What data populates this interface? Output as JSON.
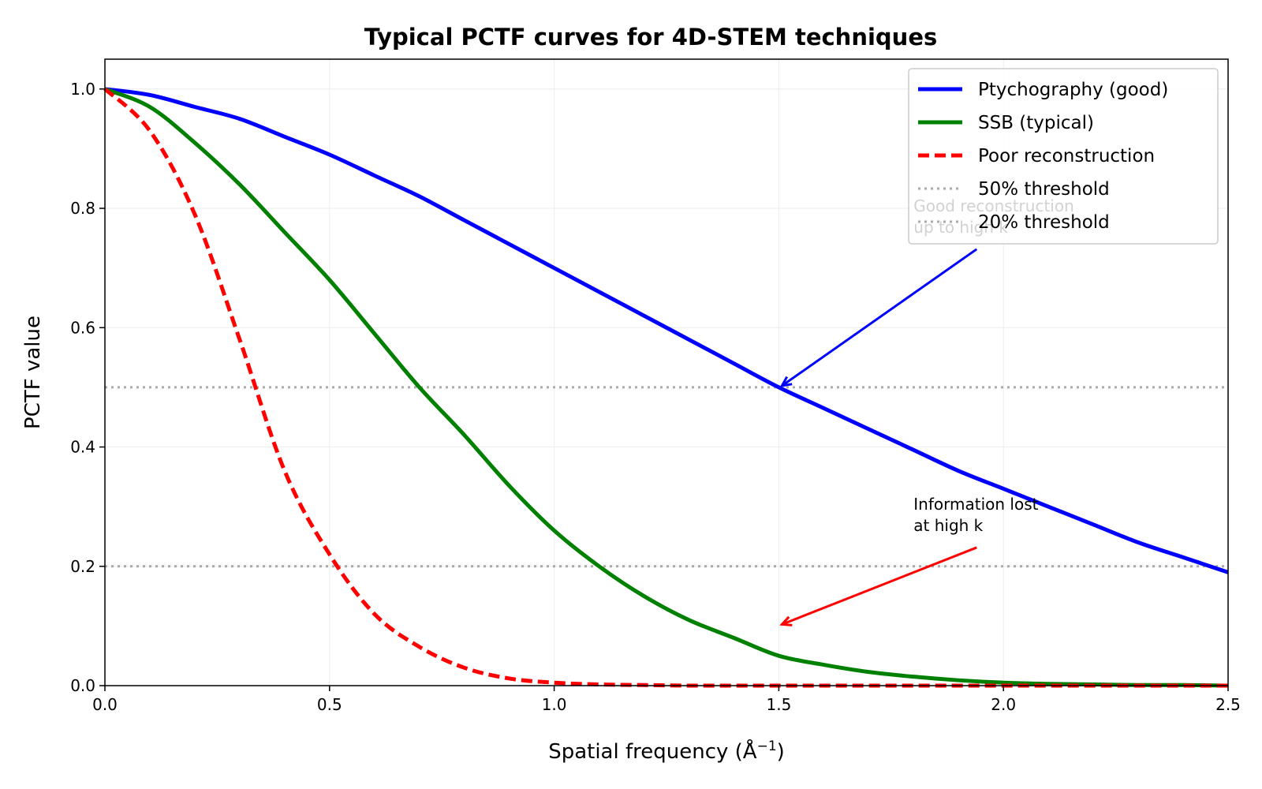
{
  "chart_data": {
    "type": "line",
    "title": "Typical PCTF curves for 4D-STEM techniques",
    "xlabel": "Spatial frequency (Å",
    "xlabel_sup": "−1",
    "xlabel_close": ")",
    "ylabel": "PCTF value",
    "xlim": [
      0,
      2.5
    ],
    "ylim": [
      0,
      1.05
    ],
    "grid": true,
    "legend_position": "top-right",
    "x_ticks": [
      0,
      0.5,
      1.0,
      1.5,
      2.0,
      2.5
    ],
    "x_tick_labels": [
      "0.0",
      "0.5",
      "1.0",
      "1.5",
      "2.0",
      "2.5"
    ],
    "y_ticks": [
      0,
      0.2,
      0.4,
      0.6,
      0.8,
      1.0
    ],
    "y_tick_labels": [
      "0.0",
      "0.2",
      "0.4",
      "0.6",
      "0.8",
      "1.0"
    ],
    "x": [
      0,
      0.1,
      0.2,
      0.3,
      0.4,
      0.5,
      0.6,
      0.7,
      0.8,
      0.9,
      1.0,
      1.1,
      1.2,
      1.3,
      1.4,
      1.5,
      1.6,
      1.7,
      1.8,
      1.9,
      2.0,
      2.1,
      2.2,
      2.3,
      2.4,
      2.5
    ],
    "series": [
      {
        "name": "Ptychography (good)",
        "color": "#0000ff",
        "style": "solid",
        "values": [
          1.0,
          0.99,
          0.97,
          0.95,
          0.92,
          0.89,
          0.855,
          0.82,
          0.78,
          0.74,
          0.7,
          0.66,
          0.62,
          0.58,
          0.54,
          0.5,
          0.465,
          0.43,
          0.395,
          0.36,
          0.33,
          0.3,
          0.27,
          0.24,
          0.215,
          0.19
        ]
      },
      {
        "name": "SSB (typical)",
        "color": "#008000",
        "style": "solid",
        "values": [
          1.0,
          0.97,
          0.91,
          0.84,
          0.76,
          0.68,
          0.59,
          0.5,
          0.42,
          0.335,
          0.26,
          0.2,
          0.15,
          0.11,
          0.08,
          0.05,
          0.035,
          0.023,
          0.015,
          0.009,
          0.005,
          0.003,
          0.002,
          0.001,
          0.001,
          0.0
        ]
      },
      {
        "name": "Poor reconstruction",
        "color": "#ff0000",
        "style": "dashed",
        "values": [
          1.0,
          0.93,
          0.79,
          0.58,
          0.36,
          0.22,
          0.12,
          0.065,
          0.03,
          0.012,
          0.005,
          0.002,
          0.001,
          0.0,
          0.0,
          0.0,
          0.0,
          0.0,
          0.0,
          0.0,
          0.0,
          0.0,
          0.0,
          0.0,
          0.0,
          0.0
        ]
      }
    ],
    "thresholds": [
      {
        "name": "50% threshold",
        "value": 0.5,
        "color": "#aaaaaa",
        "style": "dotted"
      },
      {
        "name": "20% threshold",
        "value": 0.2,
        "color": "#aaaaaa",
        "style": "dotted"
      }
    ],
    "annotations": [
      {
        "text": [
          "Good reconstruction",
          "up to high k"
        ],
        "color": "#0000ff",
        "text_color": "#000000",
        "text_x": 1.8,
        "text_y": 0.795,
        "target_x": 1.5,
        "target_y": 0.5
      },
      {
        "text": [
          "Information lost",
          "at high k"
        ],
        "color": "#ff0000",
        "text_color": "#000000",
        "text_x": 1.8,
        "text_y": 0.295,
        "target_x": 1.5,
        "target_y": 0.1
      }
    ]
  }
}
